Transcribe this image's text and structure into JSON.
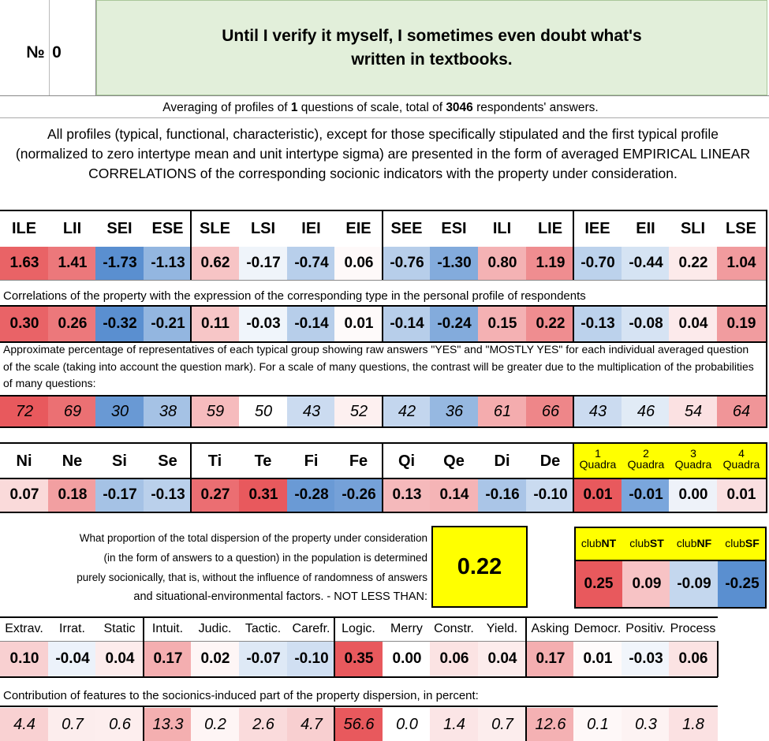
{
  "header": {
    "number_label": "№",
    "number_value": "0",
    "title": "Until I verify it myself, I sometimes even doubt what's written in textbooks."
  },
  "summary": {
    "prefix": "Averaging of profiles of ",
    "questions": "1",
    "middle": " questions of scale, total of ",
    "respondents": "3046",
    "suffix": " respondents' answers."
  },
  "description": "All profiles (typical, functional, characteristic), except for those specifically stipulated and the first typical profile (normalized to zero intertype mean and unit intertype sigma) are presented in the form of averaged EMPIRICAL LINEAR CORRELATIONS of the corresponding socionic indicators with the property under consideration.",
  "types": {
    "headers": [
      "ILE",
      "LII",
      "SEI",
      "ESE",
      "SLE",
      "LSI",
      "IEI",
      "EIE",
      "SEE",
      "ESI",
      "ILI",
      "LIE",
      "IEE",
      "EII",
      "SLI",
      "LSE"
    ],
    "profile": [
      "1.63",
      "1.41",
      "-1.73",
      "-1.13",
      "0.62",
      "-0.17",
      "-0.74",
      "0.06",
      "-0.76",
      "-1.30",
      "0.80",
      "1.19",
      "-0.70",
      "-0.44",
      "0.22",
      "1.04"
    ],
    "correlations_caption": "Correlations of the property with the expression of the corresponding type in the personal profile of respondents",
    "correlations": [
      "0.30",
      "0.26",
      "-0.32",
      "-0.21",
      "0.11",
      "-0.03",
      "-0.14",
      "0.01",
      "-0.14",
      "-0.24",
      "0.15",
      "0.22",
      "-0.13",
      "-0.08",
      "0.04",
      "0.19"
    ],
    "percent_caption": "Approximate percentage of representatives of each typical group showing raw answers \"YES\" and \"MOSTLY YES\" for each individual averaged question of the scale (taking into account the question mark). For a scale of many questions, the contrast will be greater due to the multiplication of the probabilities of many questions:",
    "percents": [
      "72",
      "69",
      "30",
      "38",
      "59",
      "50",
      "43",
      "52",
      "42",
      "36",
      "61",
      "66",
      "43",
      "46",
      "54",
      "64"
    ]
  },
  "functions": {
    "headers": [
      "Ni",
      "Ne",
      "Si",
      "Se",
      "Ti",
      "Te",
      "Fi",
      "Fe",
      "Qi",
      "Qe",
      "Di",
      "De"
    ],
    "values": [
      "0.07",
      "0.18",
      "-0.17",
      "-0.13",
      "0.27",
      "0.31",
      "-0.28",
      "-0.26",
      "0.13",
      "0.14",
      "-0.16",
      "-0.10"
    ],
    "quadra_headers": [
      {
        "num": "1",
        "label": "Quadra"
      },
      {
        "num": "2",
        "label": "Quadra"
      },
      {
        "num": "3",
        "label": "Quadra"
      },
      {
        "num": "4",
        "label": "Quadra"
      }
    ],
    "quadra_values": [
      "0.01",
      "-0.01",
      "0.00",
      "0.01"
    ]
  },
  "dispersion": {
    "text_lines": [
      "What proportion of the total dispersion of the property under consideration",
      "(in the form of answers to a question) in the population is determined",
      "purely socionically, that is, without the influence of randomness of answers",
      "and situational-environmental factors. - NOT LESS THAN:"
    ],
    "value": "0.22"
  },
  "clubs": {
    "headers": [
      {
        "prefix": "club",
        "code": "NT"
      },
      {
        "prefix": "club",
        "code": "ST"
      },
      {
        "prefix": "club",
        "code": "NF"
      },
      {
        "prefix": "club",
        "code": "SF"
      }
    ],
    "values": [
      "0.25",
      "0.09",
      "-0.09",
      "-0.25"
    ]
  },
  "traits": {
    "headers": [
      "Extrav.",
      "Irrat.",
      "Static",
      "Intuit.",
      "Judic.",
      "Tactic.",
      "Carefr.",
      "Logic.",
      "Merry",
      "Constr.",
      "Yield.",
      "Asking",
      "Democr.",
      "Positiv.",
      "Process"
    ],
    "values": [
      "0.10",
      "-0.04",
      "0.04",
      "0.17",
      "0.02",
      "-0.07",
      "-0.10",
      "0.35",
      "0.00",
      "0.06",
      "0.04",
      "0.17",
      "0.01",
      "-0.03",
      "0.06"
    ],
    "contrib_caption": "Contribution of features to the socionics-induced part of the property dispersion, in percent:",
    "contributions": [
      "4.4",
      "0.7",
      "0.6",
      "13.3",
      "0.2",
      "2.6",
      "4.7",
      "56.6",
      "0.0",
      "1.4",
      "0.7",
      "12.6",
      "0.1",
      "0.3",
      "1.8"
    ]
  },
  "colors": {
    "title_bg": "#e2efda",
    "highlight_yellow": "#ffff00",
    "positive": "#e8595d",
    "negative": "#5a8fd0"
  }
}
